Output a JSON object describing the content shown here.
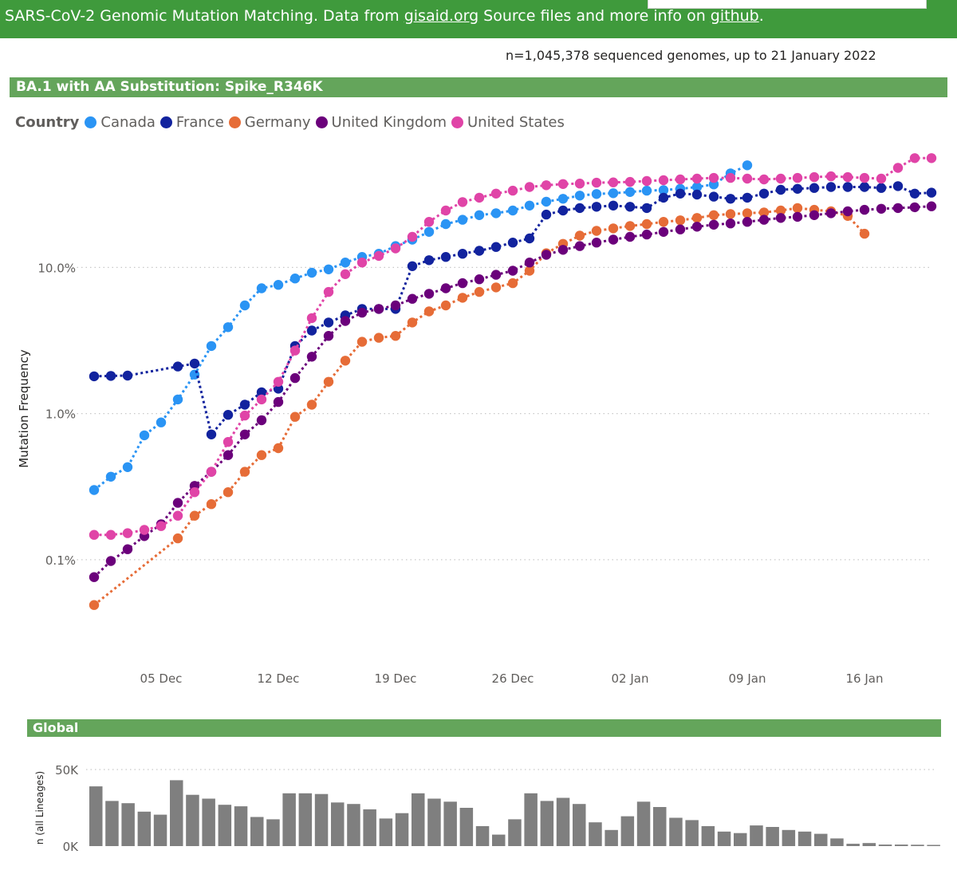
{
  "header": {
    "title_prefix": "SARS-CoV-2 Genomic Mutation Matching. Data from ",
    "gisaid_link": "gisaid.org",
    "title_middle": " Source files and more info on ",
    "github_link": "github",
    "title_suffix": "."
  },
  "stats": "n=1,045,378 sequenced genomes, up to 21 January 2022",
  "colors": {
    "header_bg": "#3f9a3c",
    "section_bg": "#64a55b",
    "bar": "#7f7f7f",
    "Canada": "#2a94f4",
    "France": "#12239e",
    "Germany": "#e66c37",
    "United Kingdom": "#6b007b",
    "United States": "#e044a7"
  },
  "chart_data": [
    {
      "type": "line",
      "title": "BA.1 with AA Substitution: Spike_R346K",
      "legend_title": "Country",
      "legend_position": "top-left",
      "ylabel": "Mutation Frequency",
      "yscale": "log",
      "ylim": [
        0.0002,
        0.75
      ],
      "yticks": [
        0.001,
        0.01,
        0.1
      ],
      "ytick_labels": [
        "0.1%",
        "1.0%",
        "10.0%"
      ],
      "grid": true,
      "xlim": [
        "2021-11-29",
        "2022-01-20"
      ],
      "xticks": [
        "2021-12-05",
        "2021-12-12",
        "2021-12-19",
        "2021-12-26",
        "2022-01-02",
        "2022-01-09",
        "2022-01-16"
      ],
      "xtick_labels": [
        "05 Dec",
        "12 Dec",
        "19 Dec",
        "26 Dec",
        "02 Jan",
        "09 Jan",
        "16 Jan"
      ],
      "x_start": "2021-12-01",
      "series": [
        {
          "name": "Canada",
          "values": [
            0.003,
            0.0037,
            0.0043,
            0.0071,
            0.0087,
            0.0125,
            0.0185,
            0.029,
            0.039,
            0.055,
            0.072,
            0.076,
            0.084,
            0.092,
            0.097,
            0.108,
            0.118,
            0.124,
            0.14,
            0.155,
            0.175,
            0.198,
            0.212,
            0.228,
            0.235,
            0.245,
            0.265,
            0.282,
            0.295,
            0.31,
            0.318,
            0.322,
            0.328,
            0.335,
            0.338,
            0.345,
            0.355,
            0.37,
            0.44,
            0.5
          ]
        },
        {
          "name": "France",
          "values": [
            0.018,
            0.0181,
            0.0182,
            null,
            null,
            0.021,
            0.022,
            0.0072,
            0.0098,
            0.0115,
            0.014,
            0.0148,
            0.029,
            0.037,
            0.042,
            0.047,
            0.052,
            0.052,
            0.052,
            0.102,
            0.112,
            0.118,
            0.124,
            0.13,
            0.138,
            0.148,
            0.158,
            0.23,
            0.245,
            0.255,
            0.26,
            0.265,
            0.26,
            0.255,
            0.3,
            0.32,
            0.315,
            0.305,
            0.295,
            0.3,
            0.32,
            0.34,
            0.345,
            0.35,
            0.355,
            0.355,
            0.355,
            0.35,
            0.36,
            0.32,
            0.325
          ]
        },
        {
          "name": "Germany",
          "values": [
            0.00049,
            null,
            null,
            null,
            null,
            0.0014,
            0.002,
            0.0024,
            0.0029,
            0.004,
            0.0052,
            0.0058,
            0.0095,
            0.0115,
            0.0165,
            0.023,
            0.031,
            0.033,
            0.034,
            0.042,
            0.05,
            0.055,
            0.062,
            0.068,
            0.073,
            0.078,
            0.095,
            0.125,
            0.145,
            0.165,
            0.178,
            0.185,
            0.192,
            0.198,
            0.205,
            0.21,
            0.218,
            0.228,
            0.232,
            0.235,
            0.238,
            0.245,
            0.255,
            0.248,
            0.242,
            0.225,
            0.17
          ]
        },
        {
          "name": "United Kingdom",
          "values": [
            0.00076,
            0.00098,
            0.00118,
            0.00145,
            0.00175,
            0.00245,
            0.0032,
            0.004,
            0.0052,
            0.0072,
            0.009,
            0.012,
            0.0175,
            0.0245,
            0.034,
            0.043,
            0.049,
            0.052,
            0.055,
            0.061,
            0.066,
            0.072,
            0.078,
            0.083,
            0.089,
            0.095,
            0.108,
            0.122,
            0.132,
            0.14,
            0.148,
            0.155,
            0.162,
            0.168,
            0.175,
            0.182,
            0.19,
            0.196,
            0.2,
            0.205,
            0.212,
            0.218,
            0.222,
            0.228,
            0.235,
            0.242,
            0.248,
            0.252,
            0.255,
            0.258,
            0.262
          ]
        },
        {
          "name": "United States",
          "values": [
            0.00148,
            0.00148,
            0.00152,
            0.0016,
            0.0017,
            0.002,
            0.0029,
            0.004,
            0.0064,
            0.0097,
            0.0125,
            0.0165,
            0.027,
            0.045,
            0.068,
            0.09,
            0.108,
            0.12,
            0.135,
            0.162,
            0.205,
            0.245,
            0.28,
            0.3,
            0.32,
            0.335,
            0.355,
            0.365,
            0.372,
            0.375,
            0.38,
            0.382,
            0.385,
            0.39,
            0.395,
            0.4,
            0.405,
            0.41,
            0.41,
            0.405,
            0.4,
            0.405,
            0.41,
            0.415,
            0.42,
            0.415,
            0.41,
            0.405,
            0.48,
            0.56,
            0.56
          ]
        }
      ]
    },
    {
      "type": "bar",
      "title": "Global",
      "ylabel": "n (all Lineages)",
      "ylim": [
        0,
        50000
      ],
      "yticks": [
        0,
        50000
      ],
      "ytick_labels": [
        "0K",
        "50K"
      ],
      "grid": true,
      "x_start": "2021-11-30",
      "values": [
        39000,
        29500,
        28000,
        22500,
        20500,
        43000,
        33500,
        31000,
        27000,
        26000,
        19000,
        17500,
        34500,
        34500,
        34000,
        28500,
        27500,
        24000,
        18000,
        21500,
        34500,
        31000,
        29000,
        25000,
        13000,
        7500,
        17500,
        34500,
        29500,
        31500,
        27500,
        15500,
        10500,
        19500,
        29000,
        25500,
        18500,
        17000,
        13000,
        9500,
        8500,
        13500,
        12500,
        10500,
        9500,
        8000,
        5000,
        1500,
        2000,
        1000,
        1000,
        900,
        800
      ]
    }
  ]
}
